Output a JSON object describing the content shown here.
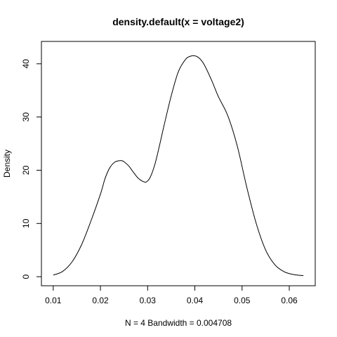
{
  "chart_data": {
    "type": "line",
    "title": "density.default(x = voltage2)",
    "xlabel": "N = 4   Bandwidth = 0.004708",
    "ylabel": "Density",
    "xlim": [
      0.0075,
      0.0655
    ],
    "ylim": [
      -1.7,
      44.2
    ],
    "x_ticks": [
      0.01,
      0.02,
      0.03,
      0.04,
      0.05,
      0.06
    ],
    "x_tick_labels": [
      "0.01",
      "0.02",
      "0.03",
      "0.04",
      "0.05",
      "0.06"
    ],
    "y_ticks": [
      0,
      10,
      20,
      30,
      40
    ],
    "y_tick_labels": [
      "0",
      "10",
      "20",
      "30",
      "40"
    ],
    "grid": false,
    "legend": "none",
    "line_color": "#000000",
    "series": [
      {
        "x": [
          0.01,
          0.012,
          0.014,
          0.016,
          0.018,
          0.02,
          0.021,
          0.022,
          0.023,
          0.024,
          0.0245,
          0.025,
          0.026,
          0.027,
          0.028,
          0.029,
          0.0297,
          0.0305,
          0.0315,
          0.0325,
          0.0335,
          0.035,
          0.0365,
          0.038,
          0.039,
          0.04,
          0.041,
          0.042,
          0.0435,
          0.045,
          0.047,
          0.049,
          0.051,
          0.053,
          0.055,
          0.057,
          0.059,
          0.061,
          0.063
        ],
        "y": [
          0.3,
          1.0,
          2.8,
          6.0,
          10.5,
          15.5,
          18.5,
          20.5,
          21.5,
          21.8,
          21.8,
          21.6,
          20.8,
          19.6,
          18.5,
          17.9,
          17.8,
          18.6,
          21.0,
          24.6,
          28.5,
          34.0,
          38.5,
          40.8,
          41.4,
          41.5,
          41.0,
          39.8,
          37.0,
          33.8,
          30.2,
          24.5,
          16.8,
          10.0,
          5.0,
          2.2,
          0.9,
          0.4,
          0.2
        ]
      }
    ]
  }
}
